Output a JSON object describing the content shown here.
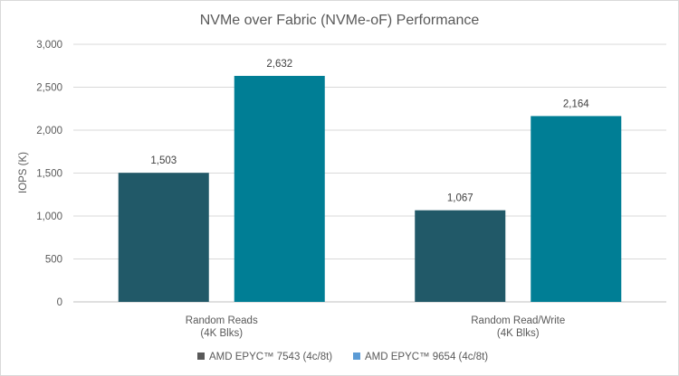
{
  "chart_data": {
    "type": "bar",
    "title": "NVMe over Fabric (NVMe-oF) Performance",
    "ylabel": "IOPS (K)",
    "xlabel": "",
    "categories": [
      [
        "Random Reads",
        "(4K Blks)"
      ],
      [
        "Random Read/Write",
        "(4K Blks)"
      ]
    ],
    "series": [
      {
        "name": "AMD EPYC™ 7543 (4c/8t)",
        "color": "#215968",
        "values": [
          1503,
          1067
        ],
        "labels": [
          "1,503",
          "1,067"
        ]
      },
      {
        "name": "AMD EPYC™ 9654 (4c/8t)",
        "color": "#007E95",
        "values": [
          2632,
          2164
        ],
        "labels": [
          "2,632",
          "2,164"
        ]
      }
    ],
    "ylim": [
      0,
      3000
    ],
    "yticks": [
      0,
      500,
      1000,
      1500,
      2000,
      2500,
      3000
    ],
    "ytick_labels": [
      "0",
      "500",
      "1,000",
      "1,500",
      "2,000",
      "2,500",
      "3,000"
    ],
    "grid": true,
    "legend_position": "bottom",
    "legend_swatch_colors": [
      "#595959",
      "#5B9BD5"
    ]
  }
}
